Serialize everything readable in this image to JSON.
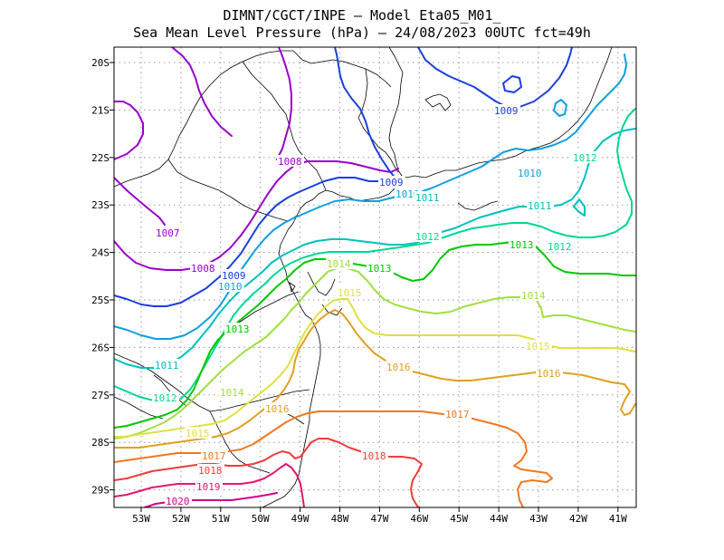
{
  "title": {
    "line1": "DIMNT/CGCT/INPE –  Model Eta05_M01_",
    "line2": "Sea Mean Level Pressure (hPa) – 24/08/2023 00UTC fct=49h"
  },
  "axes": {
    "lon_labels": [
      "53W",
      "52W",
      "51W",
      "50W",
      "49W",
      "48W",
      "47W",
      "46W",
      "45W",
      "44W",
      "43W",
      "42W",
      "41W"
    ],
    "lat_labels": [
      "20S",
      "21S",
      "22S",
      "23S",
      "24S",
      "25S",
      "26S",
      "27S",
      "28S",
      "29S"
    ]
  },
  "colors": {
    "1007": "#9900cc",
    "1008": "#9900cc",
    "1009": "#1a3fe0",
    "1010": "#0fa0e0",
    "1011": "#00c0c0",
    "1012": "#00d890",
    "1013": "#00c800",
    "1014": "#a0e040",
    "1015": "#e0e040",
    "1016": "#e0a020",
    "1017": "#f07820",
    "1018": "#f03c3c",
    "1019": "#e0186e",
    "1020": "#d00090"
  },
  "contour_labels": [
    {
      "id": "l1008a",
      "text": "1008",
      "level": "1008"
    },
    {
      "id": "l1007",
      "text": "1007",
      "level": "1007"
    },
    {
      "id": "l1008b",
      "text": "1008",
      "level": "1008"
    },
    {
      "id": "l1009a",
      "text": "1009",
      "level": "1009"
    },
    {
      "id": "l1009b",
      "text": "1009",
      "level": "1009"
    },
    {
      "id": "l1009c",
      "text": "1009",
      "level": "1009"
    },
    {
      "id": "l1010a",
      "text": "1010",
      "level": "1010"
    },
    {
      "id": "l1010b",
      "text": "1010",
      "level": "1010"
    },
    {
      "id": "l1010c",
      "text": "1010",
      "level": "1010"
    },
    {
      "id": "l1011a",
      "text": "1011",
      "level": "1011"
    },
    {
      "id": "l1011b",
      "text": "1011",
      "level": "1011"
    },
    {
      "id": "l1011c",
      "text": "1011",
      "level": "1011"
    },
    {
      "id": "l1012a",
      "text": "1012",
      "level": "1012"
    },
    {
      "id": "l1012b",
      "text": "1012",
      "level": "1012"
    },
    {
      "id": "l1012c",
      "text": "1012",
      "level": "1012"
    },
    {
      "id": "l1012d",
      "text": "1012",
      "level": "1012"
    },
    {
      "id": "l1013a",
      "text": "1013",
      "level": "1013"
    },
    {
      "id": "l1013b",
      "text": "1013",
      "level": "1013"
    },
    {
      "id": "l1013c",
      "text": "1013",
      "level": "1013"
    },
    {
      "id": "l1014a",
      "text": "1014",
      "level": "1014"
    },
    {
      "id": "l1014b",
      "text": "1014",
      "level": "1014"
    },
    {
      "id": "l1014c",
      "text": "1014",
      "level": "1014"
    },
    {
      "id": "l1015a",
      "text": "1015",
      "level": "1015"
    },
    {
      "id": "l1015b",
      "text": "1015",
      "level": "1015"
    },
    {
      "id": "l1015c",
      "text": "1015",
      "level": "1015"
    },
    {
      "id": "l1016a",
      "text": "1016",
      "level": "1016"
    },
    {
      "id": "l1016b",
      "text": "1016",
      "level": "1016"
    },
    {
      "id": "l1016c",
      "text": "1016",
      "level": "1016"
    },
    {
      "id": "l1017a",
      "text": "1017",
      "level": "1017"
    },
    {
      "id": "l1017b",
      "text": "1017",
      "level": "1017"
    },
    {
      "id": "l1018a",
      "text": "1018",
      "level": "1018"
    },
    {
      "id": "l1018b",
      "text": "1018",
      "level": "1018"
    },
    {
      "id": "l1019",
      "text": "1019",
      "level": "1019"
    },
    {
      "id": "l1020",
      "text": "1020",
      "level": "1020"
    }
  ]
}
